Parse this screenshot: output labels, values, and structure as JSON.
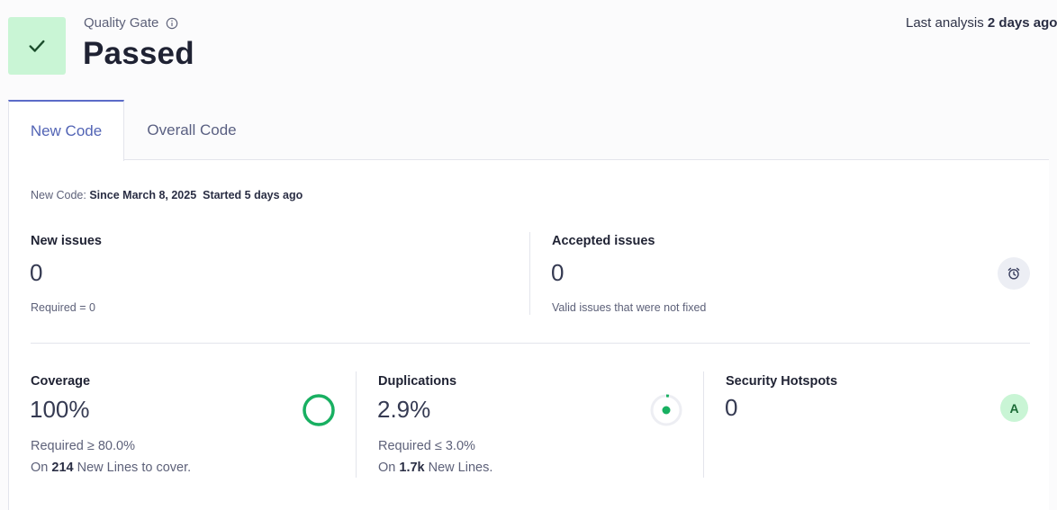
{
  "header": {
    "gate_label": "Quality Gate",
    "gate_status": "Passed",
    "last_analysis_prefix": "Last analysis",
    "last_analysis_value": "2 days ago",
    "colors": {
      "passed_bg": "#c9f5d5",
      "check": "#1b6b36"
    }
  },
  "tabs": [
    {
      "label": "New Code",
      "active": true
    },
    {
      "label": "Overall Code",
      "active": false
    }
  ],
  "new_code": {
    "prefix": "New Code:",
    "since": "Since March 8, 2025",
    "started": "Started 5 days ago"
  },
  "issues": {
    "new_title": "New issues",
    "new_value": "0",
    "new_required": "Required = 0",
    "accepted_title": "Accepted issues",
    "accepted_value": "0",
    "accepted_desc": "Valid issues that were not fixed"
  },
  "coverage": {
    "title": "Coverage",
    "value": "100%",
    "required": "Required ≥ 80.0%",
    "on_prefix": "On",
    "on_value": "214",
    "on_suffix": "New Lines to cover.",
    "fraction": 1.0
  },
  "duplications": {
    "title": "Duplications",
    "value": "2.9%",
    "required": "Required ≤ 3.0%",
    "on_prefix": "On",
    "on_value": "1.7k",
    "on_suffix": "New Lines.",
    "fraction": 0.029
  },
  "hotspots": {
    "title": "Security Hotspots",
    "value": "0",
    "rating": "A"
  }
}
